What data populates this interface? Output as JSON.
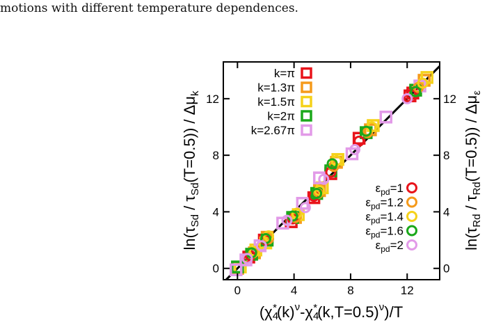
{
  "caption": "motions with different temperature dependences.",
  "chart_data": {
    "type": "scatter",
    "xlabel": "(χ*4(k)ν-χ*4(k,T=0.5)ν)/T",
    "ylabel_left": "ln(τSd / τSd(T=0.5)) / Δμk",
    "ylabel_right": "ln(τRd / τRd(T=0.5)) / Δμε",
    "xlim": [
      -1,
      14.3
    ],
    "ylim": [
      -0.8,
      14.6
    ],
    "xticks": [
      0,
      4,
      8,
      12
    ],
    "yticks": [
      0,
      4,
      8,
      12
    ],
    "diagonal_line": {
      "from": [
        -1,
        -1
      ],
      "to": [
        14.3,
        14.3
      ]
    },
    "legend_square_position": "top-left",
    "legend_circle_position": "bottom-right",
    "square_series": [
      {
        "name": "k=π",
        "color": "#e8141b",
        "points": [
          [
            0,
            0
          ],
          [
            0.8,
            0.8
          ],
          [
            1.9,
            2.0
          ],
          [
            3.8,
            3.3
          ],
          [
            5.4,
            5.0
          ],
          [
            6.6,
            6.7
          ],
          [
            8.6,
            9.2
          ],
          [
            12.2,
            12.2
          ],
          [
            12.4,
            12.4
          ]
        ]
      },
      {
        "name": "k=1.3π",
        "color": "#f59a1b",
        "points": [
          [
            0,
            0
          ],
          [
            1.2,
            1.1
          ],
          [
            2.1,
            2.2
          ],
          [
            4.1,
            3.6
          ],
          [
            5.8,
            5.5
          ],
          [
            7.0,
            7.5
          ],
          [
            9.4,
            9.8
          ],
          [
            13.2,
            13.3
          ]
        ]
      },
      {
        "name": "k=1.5π",
        "color": "#f5d21b",
        "points": [
          [
            0.2,
            0.1
          ],
          [
            1.3,
            1.3
          ],
          [
            2.0,
            1.8
          ],
          [
            4.3,
            3.8
          ],
          [
            6.0,
            5.7
          ],
          [
            7.1,
            7.7
          ],
          [
            9.6,
            10.1
          ],
          [
            13.4,
            13.5
          ]
        ]
      },
      {
        "name": "k=2π",
        "color": "#1ba81b",
        "points": [
          [
            0,
            0.1
          ],
          [
            1.0,
            1.0
          ],
          [
            2.1,
            2.0
          ],
          [
            3.9,
            3.6
          ],
          [
            5.6,
            5.3
          ],
          [
            6.6,
            6.9
          ],
          [
            9.1,
            9.6
          ],
          [
            12.6,
            12.6
          ]
        ]
      },
      {
        "name": "k=2.67π",
        "color": "#e29ae8",
        "points": [
          [
            -0.1,
            -0.1
          ],
          [
            0.6,
            0.6
          ],
          [
            1.6,
            1.6
          ],
          [
            3.2,
            3.2
          ],
          [
            4.6,
            4.6
          ],
          [
            5.8,
            6.4
          ],
          [
            8.1,
            8.1
          ],
          [
            10.5,
            10.7
          ],
          [
            12.9,
            12.9
          ]
        ]
      }
    ],
    "circle_series": [
      {
        "name": "εpd=1",
        "color": "#e8141b",
        "points": [
          [
            0.9,
            0.9
          ],
          [
            2.0,
            2.0
          ],
          [
            3.9,
            3.5
          ],
          [
            5.4,
            5.1
          ],
          [
            6.6,
            6.8
          ],
          [
            8.6,
            9.0
          ],
          [
            12.3,
            12.3
          ]
        ]
      },
      {
        "name": "εpd=1.2",
        "color": "#f59a1b",
        "points": [
          [
            1.1,
            1.1
          ],
          [
            2.2,
            2.1
          ],
          [
            4.1,
            3.6
          ],
          [
            5.7,
            5.3
          ],
          [
            6.8,
            7.2
          ],
          [
            9.2,
            9.6
          ],
          [
            12.8,
            12.8
          ]
        ]
      },
      {
        "name": "εpd=1.4",
        "color": "#f5d21b",
        "points": [
          [
            1.2,
            1.2
          ],
          [
            2.2,
            2.3
          ],
          [
            4.2,
            3.9
          ],
          [
            5.8,
            5.5
          ],
          [
            7.0,
            7.6
          ],
          [
            9.5,
            10.0
          ],
          [
            13.1,
            13.1
          ]
        ]
      },
      {
        "name": "εpd=1.6",
        "color": "#1ba81b",
        "points": [
          [
            1.0,
            1.1
          ],
          [
            2.0,
            2.1
          ],
          [
            3.9,
            3.7
          ],
          [
            5.6,
            5.3
          ],
          [
            6.7,
            7.4
          ],
          [
            9.1,
            9.7
          ],
          [
            12.6,
            12.5
          ]
        ]
      },
      {
        "name": "εpd=2",
        "color": "#e29ae8",
        "points": [
          [
            0.7,
            0.7
          ],
          [
            1.7,
            1.6
          ],
          [
            3.5,
            3.4
          ],
          [
            4.8,
            4.3
          ],
          [
            6.1,
            6.3
          ],
          [
            8.3,
            8.4
          ],
          [
            12.0,
            12.0
          ]
        ]
      }
    ]
  }
}
